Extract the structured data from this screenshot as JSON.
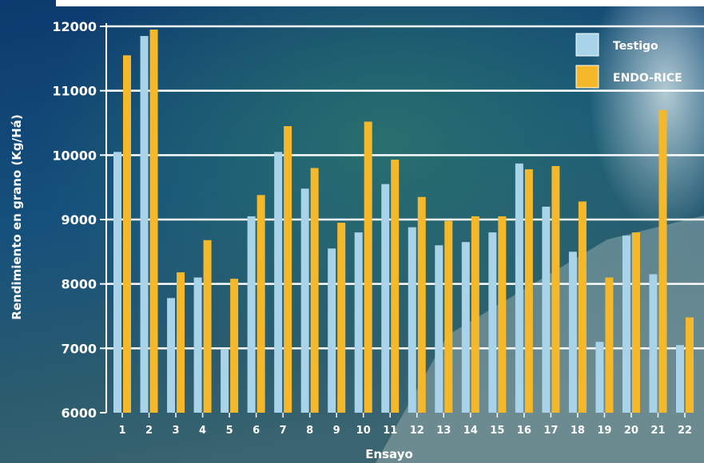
{
  "chart_data": {
    "type": "bar",
    "title": "",
    "xlabel": "Ensayo",
    "ylabel": "Rendimiento en grano (Kg/Há)",
    "ylim": [
      6000,
      12000
    ],
    "yticks": [
      "6000",
      "7000",
      "8000",
      "9000",
      "10000",
      "11000",
      "12000"
    ],
    "grid": true,
    "legend_position": "top-right",
    "categories": [
      "1",
      "2",
      "3",
      "4",
      "5",
      "6",
      "7",
      "8",
      "9",
      "10",
      "11",
      "12",
      "13",
      "14",
      "15",
      "16",
      "17",
      "18",
      "19",
      "20",
      "21",
      "22"
    ],
    "series": [
      {
        "name": "Testigo",
        "color": "#a9d3e8",
        "values": [
          10050,
          11850,
          7780,
          8100,
          6980,
          9050,
          10050,
          9480,
          8550,
          8800,
          9550,
          8880,
          8600,
          8650,
          8800,
          9870,
          9200,
          8500,
          7100,
          8750,
          8150,
          7050
        ]
      },
      {
        "name": "ENDO-RICE",
        "color": "#f5b82a",
        "values": [
          11550,
          11950,
          8180,
          8680,
          8080,
          9380,
          10450,
          9800,
          8950,
          10520,
          9930,
          9350,
          8980,
          9050,
          9050,
          9780,
          9830,
          9280,
          8100,
          8800,
          10700,
          7480
        ]
      }
    ]
  },
  "colors": {
    "background_top": "#0d3f75",
    "background_mid": "#17507a",
    "background_bottom": "#2f5a6b",
    "gridline": "#ffffff"
  }
}
